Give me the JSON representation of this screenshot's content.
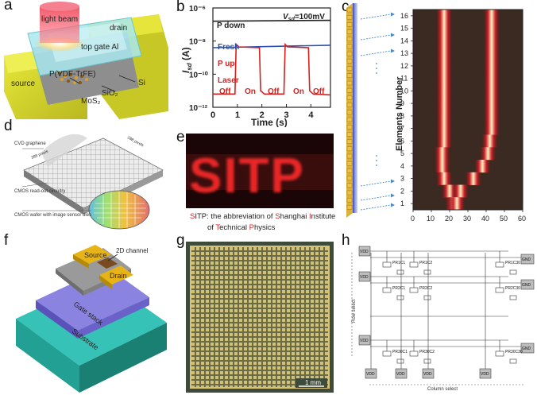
{
  "figure": {
    "panel_labels": [
      "a",
      "b",
      "c",
      "d",
      "e",
      "f",
      "g",
      "h"
    ]
  },
  "panel_a": {
    "light_beam": "light beam",
    "drain": "drain",
    "top_gate": "top gate Al",
    "ferro": "P(VDF-TrFE)",
    "source": "source",
    "si": "Si",
    "sio2": "SiO₂",
    "mos2": "MoS₂"
  },
  "panel_b": {
    "vsd": "V",
    "vsd_sub": "sd",
    "vsd_value": "=100mV",
    "legend": [
      "P down",
      "Fresh",
      "P up"
    ],
    "ylabel": "I",
    "ylabel_sub": "sd",
    "ylabel_unit": " (A)",
    "xlabel": "Time (s)",
    "laser_label": "Laser",
    "states": [
      "Off",
      "On",
      "Off",
      "On",
      "Off"
    ]
  },
  "chart_data": {
    "type": "line",
    "title": "",
    "xlabel": "Time (s)",
    "ylabel": "Isd (A)",
    "xlim": [
      0,
      4.8
    ],
    "ylim_log10": [
      -12,
      -6
    ],
    "x_ticks": [
      "0",
      "1",
      "2",
      "3",
      "4"
    ],
    "y_ticks": [
      "10⁻¹²",
      "10⁻¹⁰",
      "10⁻⁸",
      "10⁻⁶"
    ],
    "y_tick_values_log10": [
      -12,
      -10,
      -8,
      -6
    ],
    "series": [
      {
        "name": "P down",
        "color": "#222222",
        "x": [
          0,
          4.8
        ],
        "log10_y": [
          -6.8,
          -6.75
        ]
      },
      {
        "name": "Fresh",
        "color": "#2a4fb0",
        "x": [
          0,
          4.8
        ],
        "log10_y": [
          -8.4,
          -8.25
        ]
      },
      {
        "name": "P up",
        "color": "#d62020",
        "x": [
          0,
          0.9,
          0.95,
          1.05,
          1.9,
          1.95,
          2.1,
          2.9,
          2.95,
          3.05,
          3.9,
          3.95,
          4.1,
          4.8
        ],
        "log10_y": [
          -11.2,
          -11.2,
          -8.2,
          -8.35,
          -8.4,
          -11.0,
          -11.2,
          -11.2,
          -8.2,
          -8.35,
          -8.4,
          -11.0,
          -11.2,
          -11.25
        ]
      }
    ]
  },
  "panel_c": {
    "ylabel": "Elements Number",
    "row_labels": [
      "16",
      "15",
      "14",
      "13",
      "12",
      "11",
      "10",
      "9",
      "8",
      "7",
      "6",
      "5",
      "4",
      "3",
      "2",
      "1"
    ],
    "x_ticks": [
      "0",
      "10",
      "20",
      "30",
      "40",
      "50",
      "60"
    ]
  },
  "panel_d": {
    "graphene": "CVD graphene",
    "cmos_readout": "CMOS read-out circuitry",
    "cmos_wafer": "CMOS wafer with image sensor dies",
    "dim1": "388 pixels",
    "dim2": "288 pixels"
  },
  "panel_e": {
    "image_text": "SITP",
    "caption_letters": [
      "S",
      "I",
      "T",
      "P"
    ],
    "caption_parts": [
      "ITP: the abbreviation of ",
      "hanghai ",
      "nstitute",
      "of ",
      "echnical ",
      "hysics"
    ]
  },
  "panel_f": {
    "source": "Source",
    "drain": "Drain",
    "channel": "2D channel",
    "gate_stack": "Gate stack",
    "substrate": "Substrate"
  },
  "panel_g": {
    "scale_bar": "1 mm"
  },
  "panel_h": {
    "vdd": "V",
    "vdd_sub": "DD",
    "row_select": "Row select",
    "column_select": "Column select",
    "cells": [
      "P",
      "P",
      "P",
      "P",
      "P",
      "P",
      "P",
      "P",
      "P"
    ],
    "cell_subs": [
      "R1C1",
      "R1C2",
      "R1C30",
      "R2C1",
      "R2C2",
      "R2C30",
      "R30C1",
      "R30C2",
      "R30C30"
    ],
    "gnd_labels": [
      "GND",
      "GND",
      "GND"
    ],
    "bottom_vdd": [
      "V",
      "V",
      "V",
      "V"
    ]
  },
  "colors": {
    "red_accent": "#d62020",
    "blue_accent": "#2a4fb0"
  }
}
